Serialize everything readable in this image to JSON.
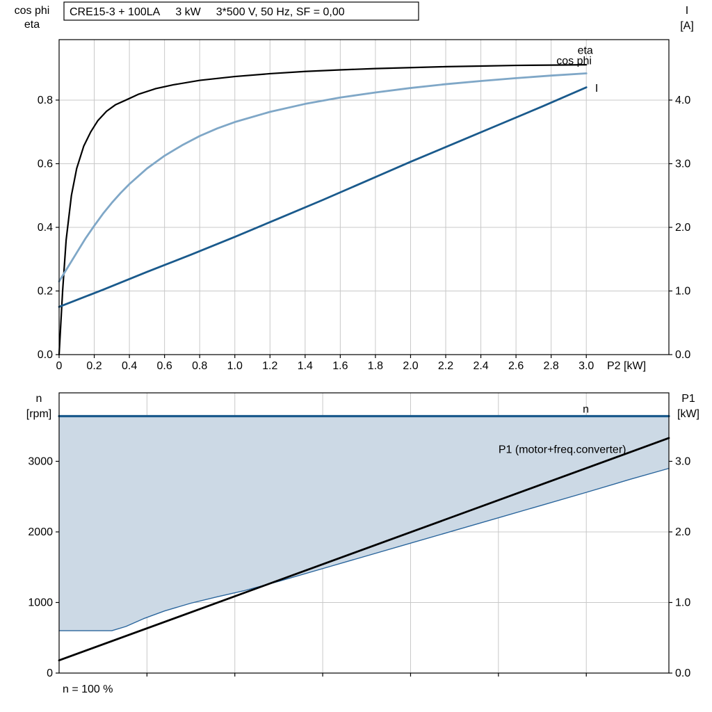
{
  "page": {
    "background_color": "#ffffff"
  },
  "chart_data": [
    {
      "id": "electrical-curves",
      "type": "line",
      "title": "CRE15-3 + 100LA   3 kW   3*500 V, 50 Hz, SF = 0,00",
      "title_segments": [
        "CRE15-3 + 100LA",
        "3 kW",
        "3*500 V, 50 Hz, SF = 0,00"
      ],
      "grid_color": "#c8c8c8",
      "axis_color": "#000000",
      "x_axis": {
        "label": "P2 [kW]",
        "min": 0,
        "max": 3.47,
        "ticks": [
          0,
          0.2,
          0.4,
          0.6,
          0.8,
          1.0,
          1.2,
          1.4,
          1.6,
          1.8,
          2.0,
          2.2,
          2.4,
          2.6,
          2.8,
          3.0
        ],
        "tick_labels": [
          "0",
          "0.2",
          "0.4",
          "0.6",
          "0.8",
          "1.0",
          "1.2",
          "1.4",
          "1.6",
          "1.8",
          "2.0",
          "2.2",
          "2.4",
          "2.6",
          "2.8",
          "3.0"
        ],
        "gridlines": [
          0.2,
          0.4,
          0.6,
          0.8,
          1.0,
          1.2,
          1.4,
          1.6,
          1.8,
          2.0,
          2.2,
          2.4,
          2.6,
          2.8,
          3.0
        ]
      },
      "left_axis": {
        "label_lines": [
          "cos phi",
          "eta"
        ],
        "min": 0,
        "max": 0.99,
        "ticks": [
          0,
          0.2,
          0.4,
          0.6,
          0.8
        ],
        "tick_labels": [
          "0.0",
          "0.2",
          "0.4",
          "0.6",
          "0.8"
        ]
      },
      "right_axis": {
        "label_lines": [
          "I",
          "[A]"
        ],
        "min": 0,
        "max": 4.95,
        "ticks": [
          0,
          1,
          2,
          3,
          4
        ],
        "tick_labels": [
          "0.0",
          "1.0",
          "2.0",
          "3.0",
          "4.0"
        ]
      },
      "series": [
        {
          "name": "eta",
          "label": "eta",
          "axis": "left",
          "color": "#000000",
          "width": 2.2,
          "label_pos": {
            "x": 2.95,
            "y": 0.945
          },
          "label_anchor": "start",
          "x": [
            0,
            0.02,
            0.04,
            0.07,
            0.1,
            0.14,
            0.18,
            0.22,
            0.27,
            0.32,
            0.38,
            0.45,
            0.55,
            0.65,
            0.8,
            1.0,
            1.2,
            1.4,
            1.6,
            1.8,
            2.0,
            2.2,
            2.4,
            2.6,
            2.8,
            3.0
          ],
          "y": [
            0,
            0.2,
            0.36,
            0.5,
            0.585,
            0.655,
            0.7,
            0.735,
            0.765,
            0.785,
            0.8,
            0.818,
            0.836,
            0.848,
            0.862,
            0.874,
            0.883,
            0.89,
            0.895,
            0.899,
            0.902,
            0.905,
            0.907,
            0.909,
            0.91,
            0.911
          ]
        },
        {
          "name": "cos phi",
          "label": "cos phi",
          "axis": "left",
          "color": "#7fa7c7",
          "width": 2.8,
          "label_pos": {
            "x": 2.83,
            "y": 0.912
          },
          "label_anchor": "start",
          "x": [
            0,
            0.05,
            0.1,
            0.15,
            0.2,
            0.25,
            0.3,
            0.35,
            0.4,
            0.5,
            0.6,
            0.7,
            0.8,
            0.9,
            1.0,
            1.2,
            1.4,
            1.6,
            1.8,
            2.0,
            2.2,
            2.4,
            2.6,
            2.8,
            3.0
          ],
          "y": [
            0.23,
            0.275,
            0.32,
            0.365,
            0.405,
            0.443,
            0.477,
            0.508,
            0.536,
            0.585,
            0.625,
            0.658,
            0.687,
            0.711,
            0.731,
            0.763,
            0.788,
            0.808,
            0.824,
            0.838,
            0.85,
            0.86,
            0.869,
            0.877,
            0.884
          ]
        },
        {
          "name": "I",
          "label": "I",
          "axis": "right",
          "color": "#1a5a8c",
          "width": 2.8,
          "label_pos": {
            "x": 3.05,
            "y": 4.13
          },
          "label_anchor": "start",
          "x": [
            0,
            0.25,
            0.5,
            0.75,
            1.0,
            1.25,
            1.5,
            1.75,
            2.0,
            2.25,
            2.5,
            2.75,
            3.0
          ],
          "y": [
            0.75,
            1.02,
            1.3,
            1.57,
            1.85,
            2.14,
            2.43,
            2.73,
            3.03,
            3.32,
            3.61,
            3.9,
            4.2
          ]
        }
      ]
    },
    {
      "id": "speed-power-curves",
      "type": "line",
      "grid_color": "#c8c8c8",
      "axis_color": "#000000",
      "footnote": "n = 100 %",
      "x_axis": {
        "label": "",
        "min": 0,
        "max": 3.47,
        "ticks": [
          0.5,
          1.0,
          1.5,
          2.0,
          2.5,
          3.0
        ],
        "tick_labels": null,
        "gridlines": [
          0.5,
          1.0,
          1.5,
          2.0,
          2.5,
          3.0
        ]
      },
      "left_axis": {
        "label_lines": [
          "n",
          "[rpm]"
        ],
        "min": 0,
        "max": 3970,
        "ticks": [
          0,
          1000,
          2000,
          3000
        ],
        "tick_labels": [
          "0",
          "1000",
          "2000",
          "3000"
        ]
      },
      "right_axis": {
        "label_lines": [
          "P1",
          "[kW]"
        ],
        "min": 0,
        "max": 3.97,
        "ticks": [
          0,
          1,
          2,
          3
        ],
        "tick_labels": [
          "0.0",
          "1.0",
          "2.0",
          "3.0"
        ]
      },
      "fill_region": {
        "top": "n",
        "bottom": "n load",
        "color": "#ccd9e5"
      },
      "series": [
        {
          "name": "n load",
          "label": "",
          "axis": "left",
          "color": "#2a659c",
          "width": 1.4,
          "x": [
            0,
            0.3,
            0.38,
            0.48,
            0.6,
            0.75,
            0.9,
            1.05,
            1.25,
            1.5,
            1.75,
            2.0,
            2.25,
            2.5,
            2.75,
            3.0,
            3.25,
            3.47
          ],
          "y": [
            600,
            600,
            660,
            770,
            880,
            990,
            1080,
            1165,
            1300,
            1480,
            1660,
            1840,
            2020,
            2200,
            2380,
            2560,
            2745,
            2900
          ]
        },
        {
          "name": "P1",
          "label": "P1 (motor+freq.converter)",
          "axis": "right",
          "color": "#000000",
          "width": 2.8,
          "label_pos": {
            "x": 2.5,
            "y": 3.12
          },
          "label_anchor": "start",
          "x": [
            0,
            3.47
          ],
          "y": [
            0.18,
            3.33
          ]
        },
        {
          "name": "n",
          "label": "n",
          "axis": "left",
          "color": "#1a5a8c",
          "width": 3.2,
          "label_pos": {
            "x": 2.98,
            "y": 3690
          },
          "label_anchor": "start",
          "x": [
            0,
            3.47
          ],
          "y": [
            3640,
            3640
          ]
        }
      ]
    }
  ]
}
